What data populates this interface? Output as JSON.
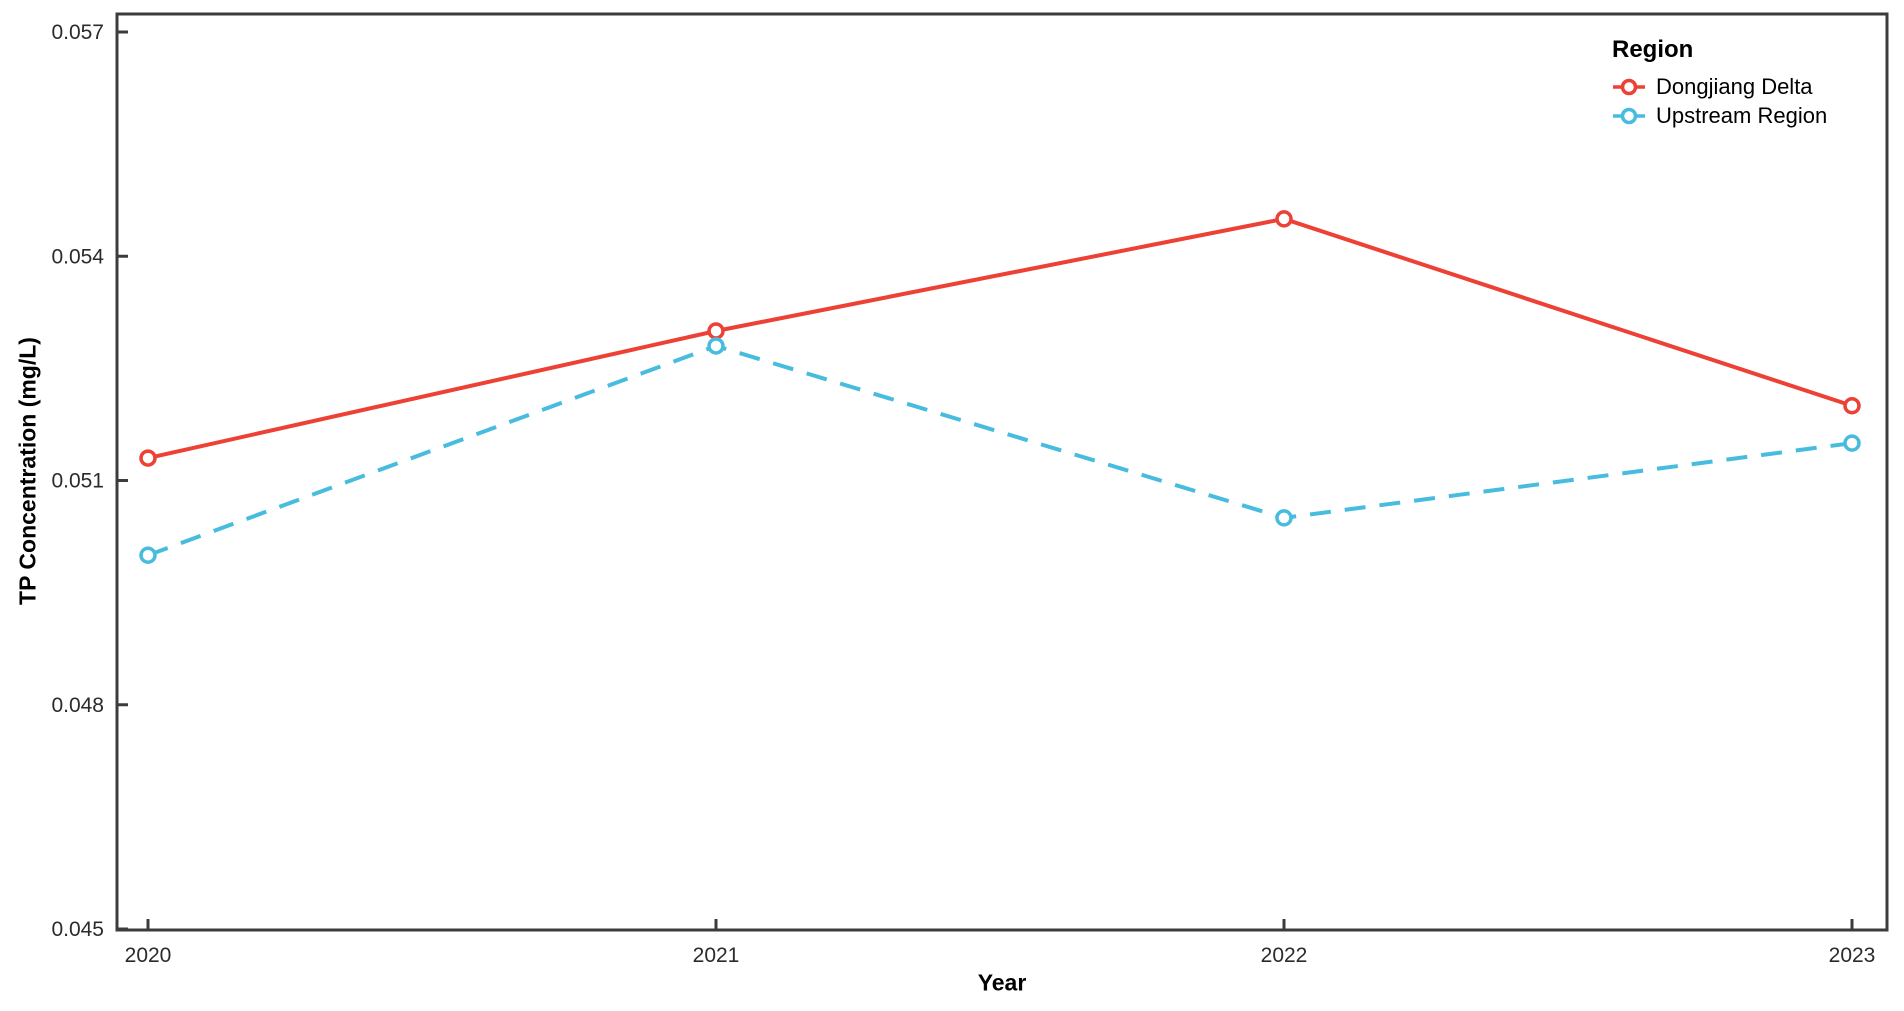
{
  "chart_data": {
    "type": "line",
    "title": "",
    "xlabel": "Year",
    "ylabel": "TP Concentration (mg/L)",
    "categories": [
      "2020",
      "2021",
      "2022",
      "2023"
    ],
    "series": [
      {
        "name": "Dongjiang Delta",
        "color": "#EE4135",
        "line_style": "solid",
        "marker": "open-circle",
        "values": [
          0.0513,
          0.053,
          0.0545,
          0.052
        ]
      },
      {
        "name": "Upstream Region",
        "color": "#47BCDF",
        "line_style": "dashed",
        "marker": "open-circle",
        "values": [
          0.05,
          0.0528,
          0.0505,
          0.0515
        ]
      }
    ],
    "ylim": [
      0.045,
      0.057
    ],
    "y_ticks": [
      "0.045",
      "0.048",
      "0.051",
      "0.054",
      "0.057"
    ],
    "legend": {
      "title": "Region",
      "position": "top-right"
    },
    "grid": false,
    "axis_color": "#3C3C3C",
    "tick_label_color": "#2B2B2B",
    "background": "#FFFFFF"
  }
}
